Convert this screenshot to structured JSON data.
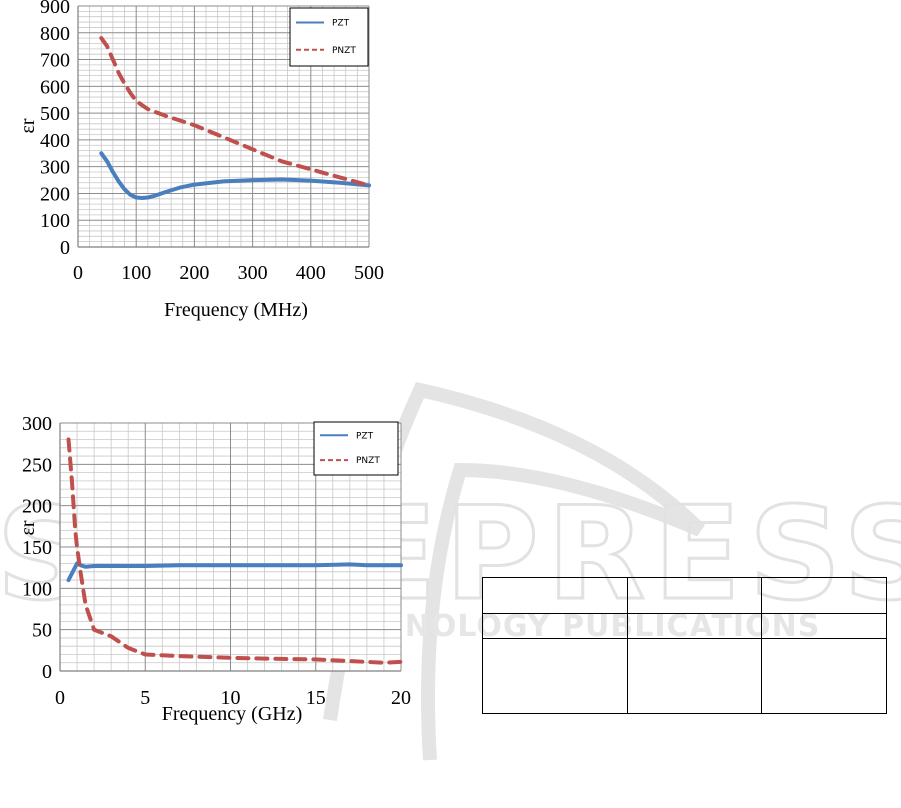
{
  "chart_data": [
    {
      "type": "line",
      "xlabel": "Frequency (MHz)",
      "ylabel": "εr",
      "xlim": [
        0,
        500
      ],
      "ylim": [
        0,
        900
      ],
      "xticks": [
        0,
        100,
        200,
        300,
        400,
        500
      ],
      "yticks": [
        0,
        100,
        200,
        300,
        400,
        500,
        600,
        700,
        800,
        900
      ],
      "grid": true,
      "legend": "top-right",
      "series": [
        {
          "name": "PZT",
          "color": "#4a7ebf",
          "style": "solid",
          "x": [
            40,
            50,
            60,
            70,
            80,
            90,
            100,
            110,
            120,
            130,
            150,
            175,
            200,
            250,
            300,
            350,
            400,
            450,
            500
          ],
          "y": [
            350,
            320,
            280,
            245,
            215,
            195,
            185,
            183,
            185,
            190,
            205,
            222,
            233,
            245,
            250,
            252,
            248,
            240,
            230
          ]
        },
        {
          "name": "PNZT",
          "color": "#c0504d",
          "style": "dashed",
          "x": [
            40,
            50,
            60,
            70,
            80,
            90,
            100,
            120,
            150,
            200,
            250,
            300,
            350,
            400,
            450,
            500
          ],
          "y": [
            780,
            750,
            700,
            650,
            610,
            575,
            545,
            515,
            490,
            455,
            410,
            365,
            320,
            290,
            260,
            230
          ]
        }
      ]
    },
    {
      "type": "line",
      "xlabel": "Frequency (GHz)",
      "ylabel": "εr",
      "xlim": [
        0,
        20
      ],
      "ylim": [
        0,
        300
      ],
      "xticks": [
        0,
        5,
        10,
        15,
        20
      ],
      "yticks": [
        0,
        50,
        100,
        150,
        200,
        250,
        300
      ],
      "grid": true,
      "legend": "top-right",
      "series": [
        {
          "name": "PZT",
          "color": "#4a7ebf",
          "style": "solid",
          "x": [
            0.5,
            0.8,
            1,
            1.2,
            1.5,
            2,
            3,
            5,
            7,
            10,
            13,
            15,
            17,
            18,
            19,
            20
          ],
          "y": [
            110,
            122,
            130,
            128,
            126,
            127,
            127,
            127,
            128,
            128,
            128,
            128,
            129,
            128,
            128,
            128
          ]
        },
        {
          "name": "PNZT",
          "color": "#c0504d",
          "style": "dashed",
          "x": [
            0.5,
            0.7,
            0.9,
            1,
            1.2,
            1.5,
            2,
            3,
            4,
            5,
            7,
            10,
            12,
            15,
            17,
            19,
            20
          ],
          "y": [
            280,
            230,
            170,
            150,
            120,
            80,
            50,
            42,
            28,
            20,
            18,
            16,
            15,
            14,
            12,
            10,
            11
          ]
        }
      ]
    }
  ],
  "watermark": {
    "line1": "SCITEPRESS",
    "line2": "SCIENCE AND TECHNOLOGY PUBLICATIONS",
    "color": "#d9d9d9"
  }
}
